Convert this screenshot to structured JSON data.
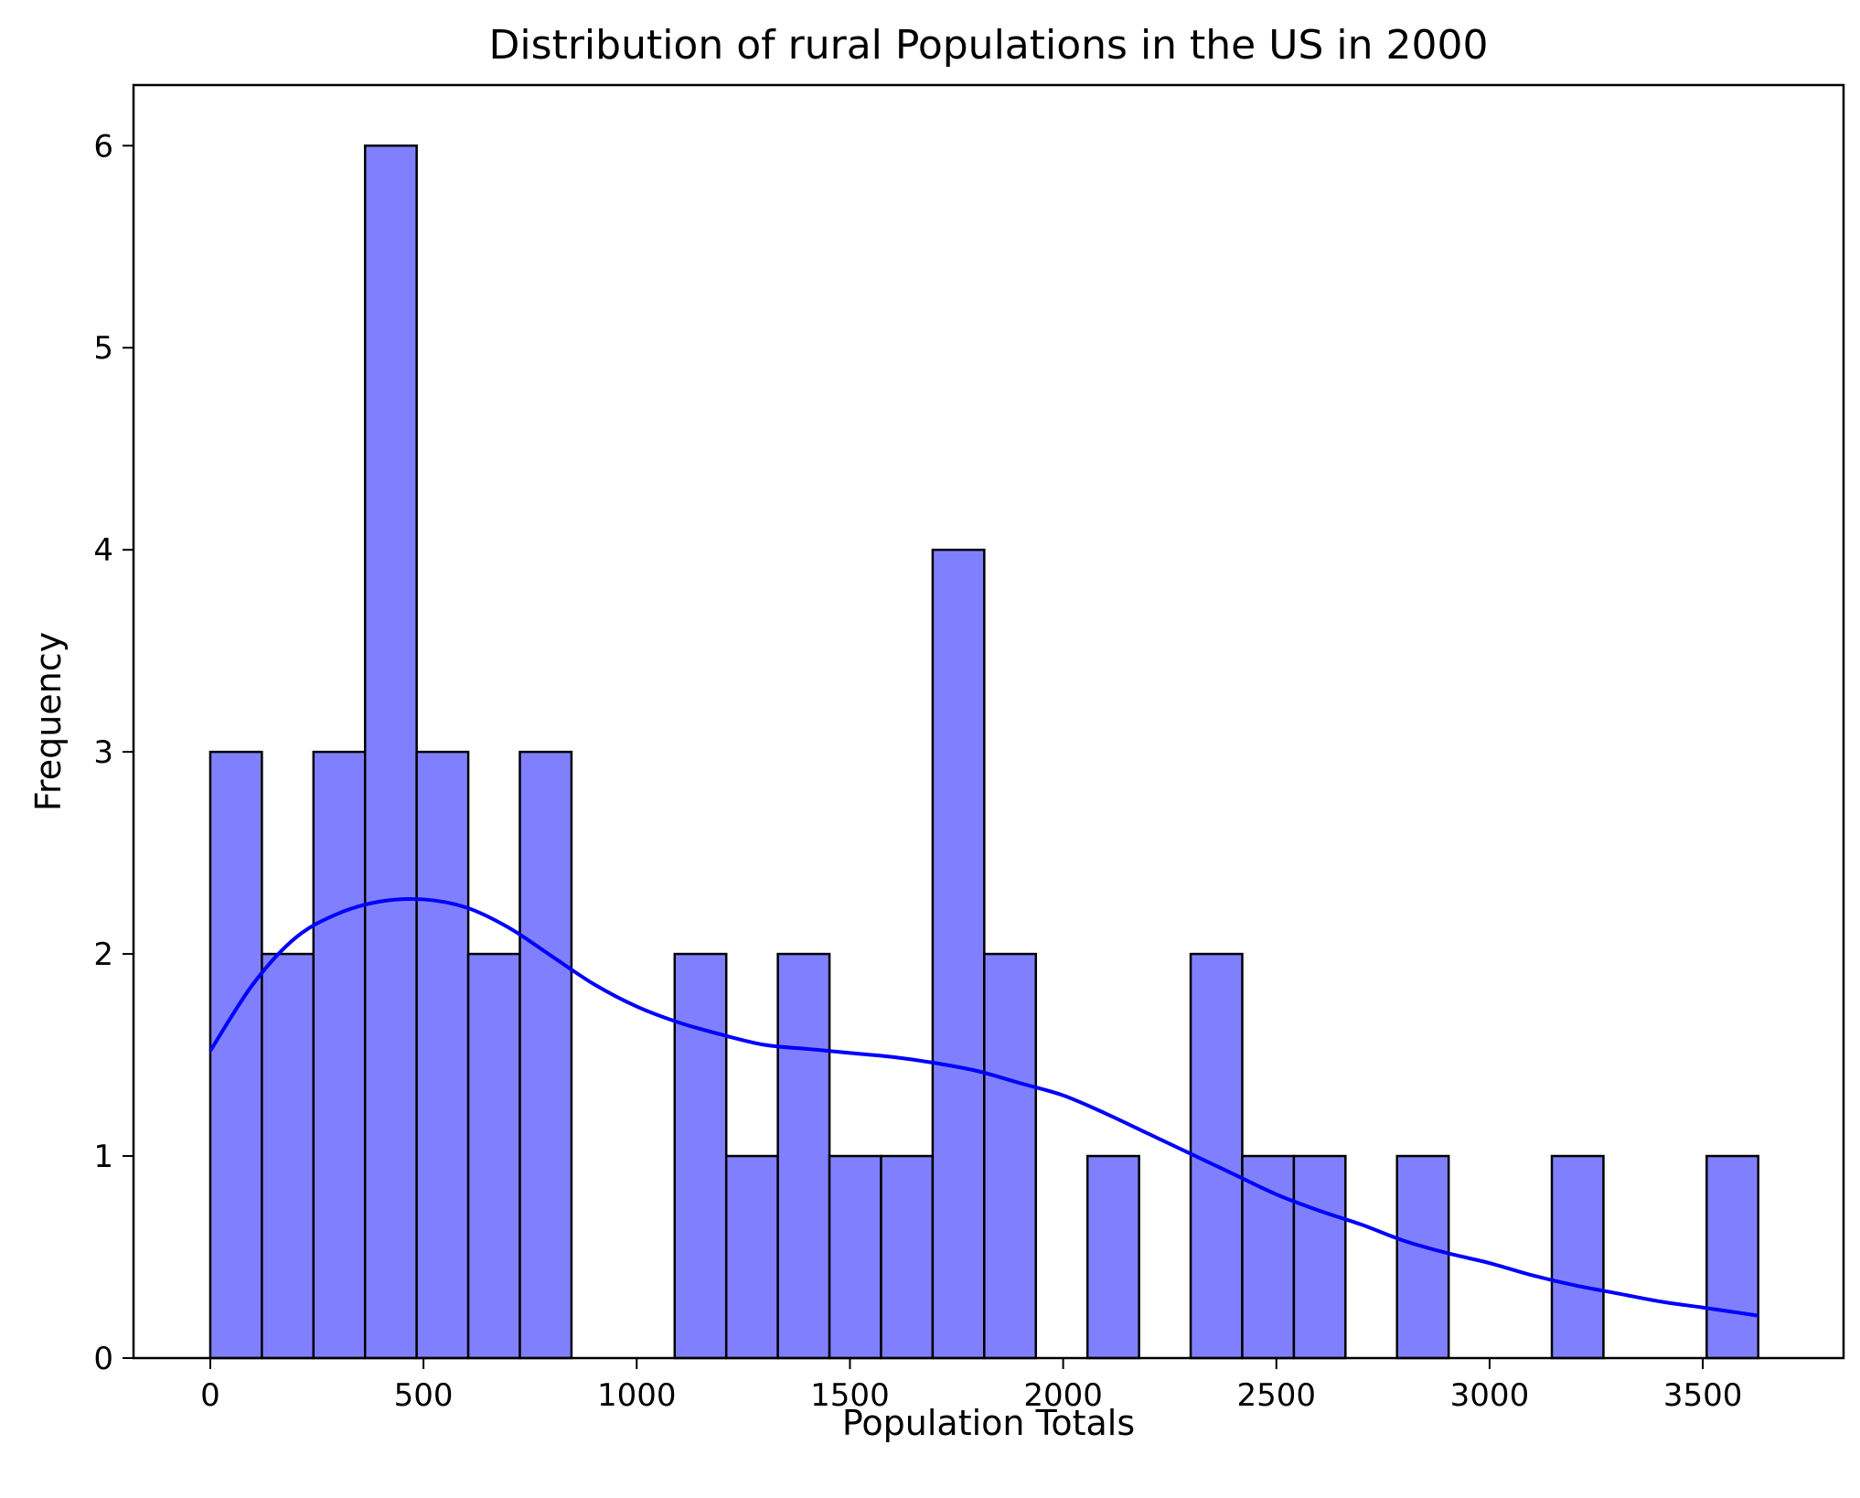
{
  "chart_data": {
    "type": "bar",
    "title": "Distribution of rural Populations in the US in 2000",
    "xlabel": "Population Totals",
    "ylabel": "Frequency",
    "xlim": [
      -180,
      3830
    ],
    "ylim": [
      0,
      6.3
    ],
    "x_ticks": [
      0,
      500,
      1000,
      1500,
      2000,
      2500,
      3000,
      3500
    ],
    "y_ticks": [
      0,
      1,
      2,
      3,
      4,
      5,
      6
    ],
    "grid": false,
    "legend": "none",
    "bar_fill": "#8080ff",
    "bar_edge": "#000000",
    "kde_color": "#0000ff",
    "bins": [
      {
        "x0": 0,
        "x1": 121,
        "count": 3
      },
      {
        "x0": 121,
        "x1": 242,
        "count": 2
      },
      {
        "x0": 242,
        "x1": 363,
        "count": 3
      },
      {
        "x0": 363,
        "x1": 484,
        "count": 6
      },
      {
        "x0": 484,
        "x1": 605,
        "count": 3
      },
      {
        "x0": 605,
        "x1": 726,
        "count": 2
      },
      {
        "x0": 726,
        "x1": 847,
        "count": 3
      },
      {
        "x0": 847,
        "x1": 968,
        "count": 0
      },
      {
        "x0": 968,
        "x1": 1089,
        "count": 0
      },
      {
        "x0": 1089,
        "x1": 1210,
        "count": 2
      },
      {
        "x0": 1210,
        "x1": 1331,
        "count": 1
      },
      {
        "x0": 1331,
        "x1": 1452,
        "count": 2
      },
      {
        "x0": 1452,
        "x1": 1573,
        "count": 1
      },
      {
        "x0": 1573,
        "x1": 1694,
        "count": 1
      },
      {
        "x0": 1694,
        "x1": 1815,
        "count": 4
      },
      {
        "x0": 1815,
        "x1": 1936,
        "count": 2
      },
      {
        "x0": 1936,
        "x1": 2057,
        "count": 0
      },
      {
        "x0": 2057,
        "x1": 2178,
        "count": 1
      },
      {
        "x0": 2178,
        "x1": 2299,
        "count": 0
      },
      {
        "x0": 2299,
        "x1": 2420,
        "count": 2
      },
      {
        "x0": 2420,
        "x1": 2541,
        "count": 1
      },
      {
        "x0": 2541,
        "x1": 2662,
        "count": 1
      },
      {
        "x0": 2662,
        "x1": 2783,
        "count": 0
      },
      {
        "x0": 2783,
        "x1": 2904,
        "count": 1
      },
      {
        "x0": 2904,
        "x1": 3025,
        "count": 0
      },
      {
        "x0": 3025,
        "x1": 3146,
        "count": 0
      },
      {
        "x0": 3146,
        "x1": 3267,
        "count": 1
      },
      {
        "x0": 3267,
        "x1": 3388,
        "count": 0
      },
      {
        "x0": 3388,
        "x1": 3509,
        "count": 0
      },
      {
        "x0": 3509,
        "x1": 3630,
        "count": 1
      }
    ],
    "kde": {
      "x": [
        0,
        100,
        200,
        300,
        400,
        500,
        600,
        700,
        800,
        900,
        1000,
        1100,
        1200,
        1300,
        1400,
        1500,
        1600,
        1700,
        1800,
        1900,
        2000,
        2100,
        2200,
        2300,
        2400,
        2500,
        2600,
        2700,
        2800,
        2900,
        3000,
        3100,
        3200,
        3300,
        3400,
        3500,
        3630
      ],
      "y": [
        1.52,
        1.85,
        2.08,
        2.2,
        2.26,
        2.27,
        2.23,
        2.13,
        1.99,
        1.85,
        1.74,
        1.66,
        1.6,
        1.55,
        1.53,
        1.51,
        1.49,
        1.46,
        1.42,
        1.36,
        1.3,
        1.21,
        1.11,
        1.01,
        0.91,
        0.81,
        0.73,
        0.66,
        0.58,
        0.52,
        0.47,
        0.41,
        0.36,
        0.32,
        0.28,
        0.25,
        0.21
      ]
    }
  }
}
